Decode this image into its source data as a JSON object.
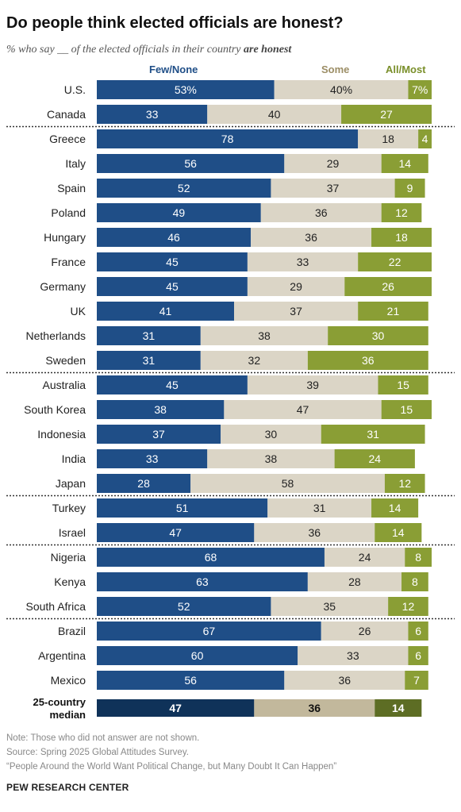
{
  "title": "Do people think elected officials are honest?",
  "subtitle": {
    "prefix": "% who say __ of the elected officials in their country ",
    "emphasis": "are honest"
  },
  "colors": {
    "few": "#1f4e87",
    "some": "#dbd5c6",
    "most": "#8a9e35",
    "median_few": "#0f3259",
    "median_some": "#c2b89c",
    "median_most": "#5d6d24",
    "few_label": "#1f4e87",
    "some_label": "#9c8e66",
    "most_label": "#7a8f2a"
  },
  "chart_data": {
    "type": "bar",
    "orientation": "horizontal",
    "stacked": true,
    "categories": [
      "U.S.",
      "Canada",
      "Greece",
      "Italy",
      "Spain",
      "Poland",
      "Hungary",
      "France",
      "Germany",
      "UK",
      "Netherlands",
      "Sweden",
      "Australia",
      "South Korea",
      "Indonesia",
      "India",
      "Japan",
      "Turkey",
      "Israel",
      "Nigeria",
      "Kenya",
      "South Africa",
      "Brazil",
      "Argentina",
      "Mexico"
    ],
    "series": [
      {
        "name": "Few/None",
        "values": [
          53,
          33,
          78,
          56,
          52,
          49,
          46,
          45,
          45,
          41,
          31,
          31,
          45,
          38,
          37,
          33,
          28,
          51,
          47,
          68,
          63,
          52,
          67,
          60,
          56
        ]
      },
      {
        "name": "Some",
        "values": [
          40,
          40,
          18,
          29,
          37,
          36,
          36,
          33,
          29,
          37,
          38,
          32,
          39,
          47,
          30,
          38,
          58,
          31,
          36,
          24,
          28,
          35,
          26,
          33,
          36
        ]
      },
      {
        "name": "All/Most",
        "values": [
          7,
          27,
          4,
          14,
          9,
          12,
          18,
          22,
          26,
          21,
          30,
          36,
          15,
          15,
          31,
          24,
          12,
          14,
          14,
          8,
          8,
          12,
          6,
          6,
          7
        ]
      }
    ],
    "display_labels": [
      [
        "53%",
        "40%",
        "7%"
      ],
      [
        "33",
        "40",
        "27"
      ],
      [
        "78",
        "18",
        "4"
      ],
      [
        "56",
        "29",
        "14"
      ],
      [
        "52",
        "37",
        "9"
      ],
      [
        "49",
        "36",
        "12"
      ],
      [
        "46",
        "36",
        "18"
      ],
      [
        "45",
        "33",
        "22"
      ],
      [
        "45",
        "29",
        "26"
      ],
      [
        "41",
        "37",
        "21"
      ],
      [
        "31",
        "38",
        "30"
      ],
      [
        "31",
        "32",
        "36"
      ],
      [
        "45",
        "39",
        "15"
      ],
      [
        "38",
        "47",
        "15"
      ],
      [
        "37",
        "30",
        "31"
      ],
      [
        "33",
        "38",
        "24"
      ],
      [
        "28",
        "58",
        "12"
      ],
      [
        "51",
        "31",
        "14"
      ],
      [
        "47",
        "36",
        "14"
      ],
      [
        "68",
        "24",
        "8"
      ],
      [
        "63",
        "28",
        "8"
      ],
      [
        "52",
        "35",
        "12"
      ],
      [
        "67",
        "26",
        "6"
      ],
      [
        "60",
        "33",
        "6"
      ],
      [
        "56",
        "36",
        "7"
      ]
    ],
    "group_breaks_after": [
      "Canada",
      "Sweden",
      "Japan",
      "Israel",
      "South Africa"
    ],
    "median": {
      "label_line1": "25-country",
      "label_line2": "median",
      "values": [
        47,
        36,
        14
      ],
      "display_labels": [
        "47",
        "36",
        "14"
      ]
    },
    "xlim": [
      0,
      100
    ]
  },
  "notes": {
    "note": "Note: Those who did not answer are not shown.",
    "source": "Source: Spring 2025 Global Attitudes Survey.",
    "report": "“People Around the World Want Political Change, but Many Doubt It Can Happen”"
  },
  "org": "PEW RESEARCH CENTER"
}
